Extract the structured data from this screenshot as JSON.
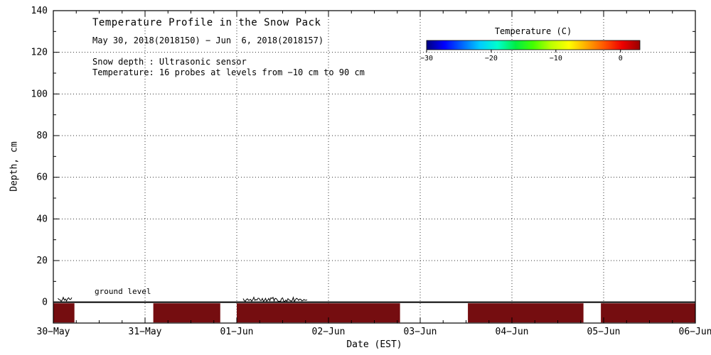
{
  "chart_data": {
    "type": "heatmap",
    "title": "Temperature Profile in the Snow Pack",
    "subtitle": "May 30, 2018(2018150) − Jun  6, 2018(2018157)",
    "annotations": {
      "snow_depth": "Snow depth : Ultrasonic sensor",
      "temperature_probes": "Temperature: 16 probes at levels from −10 cm to 90 cm",
      "ground_level": "ground level"
    },
    "xlabel": "Date (EST)",
    "ylabel": "Depth, cm",
    "x_axis": {
      "tick_labels": [
        "30−May",
        "31−May",
        "01−Jun",
        "02−Jun",
        "03−Jun",
        "04−Jun",
        "05−Jun",
        "06−Jun"
      ],
      "tick_days": [
        0,
        1,
        2,
        3,
        4,
        5,
        6,
        7
      ],
      "minor_tick_step_days": 0.25,
      "range_days": [
        0,
        7
      ]
    },
    "y_axis": {
      "tick_values": [
        0,
        20,
        40,
        60,
        80,
        100,
        120,
        140
      ],
      "tick_labels": [
        "0",
        "20",
        "40",
        "60",
        "80",
        "100",
        "120",
        "140"
      ],
      "minor_tick_step_cm": 10,
      "range_cm": [
        -10,
        140
      ]
    },
    "grid": "dotted",
    "colorbar": {
      "title": "Temperature (C)",
      "min": -30,
      "max": 3,
      "tick_values": [
        -30,
        -20,
        -10,
        0
      ],
      "tick_labels": [
        "−30",
        "−20",
        "−10",
        "0"
      ],
      "gradient_colors": [
        "#000080",
        "#0000ff",
        "#0066ff",
        "#00ccff",
        "#00ffcc",
        "#00ee44",
        "#44ff00",
        "#bbff00",
        "#ffff00",
        "#ffaa00",
        "#ff5500",
        "#ee0000",
        "#990000"
      ]
    },
    "ground_level_cm": 0,
    "soil_temperature_bands": {
      "depth_range_cm": [
        -10,
        0
      ],
      "approx_value_c": 0,
      "color": "#750d10",
      "segments_days": [
        [
          0.0,
          0.23
        ],
        [
          1.09,
          1.82
        ],
        [
          2.0,
          3.78
        ],
        [
          4.52,
          5.78
        ],
        [
          5.97,
          7.0
        ]
      ]
    },
    "snow_depth_noise": {
      "near_depth_cm": 0,
      "color": "#000000",
      "segments_days": [
        [
          0.05,
          0.21
        ],
        [
          2.07,
          2.77
        ]
      ]
    },
    "axis_color": "#000000",
    "background_color": "#ffffff"
  }
}
